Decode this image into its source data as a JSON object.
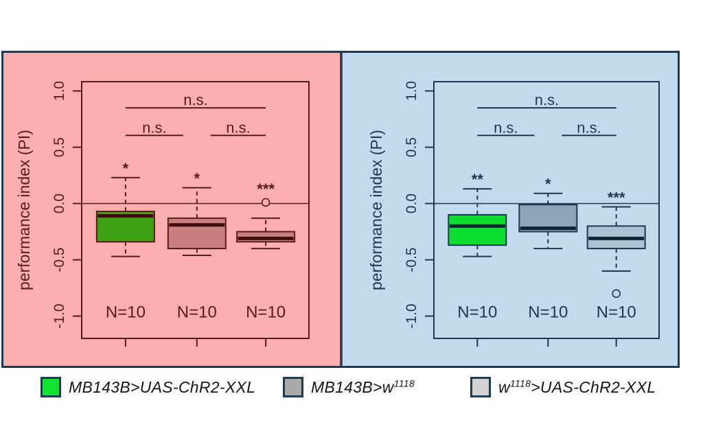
{
  "figure": {
    "background": "#ffffff",
    "border_color": "#1d3a50"
  },
  "chart_data": [
    {
      "type": "box",
      "panel": "left-red-panel",
      "background": "#fbafaf",
      "axis_color": "#5a191c",
      "median_color": "#400d10",
      "ylabel": "performance index (PI)",
      "ylim": [
        -1.2,
        1.1
      ],
      "grid": false,
      "zero_line": 0.0,
      "yticks": [
        {
          "label": "1.0",
          "value": 1.0
        },
        {
          "label": "0.5",
          "value": 0.5
        },
        {
          "label": "0.0",
          "value": 0.0
        },
        {
          "label": "-0.5",
          "value": -0.5
        },
        {
          "label": "-1.0",
          "value": -1.0
        }
      ],
      "groups": [
        {
          "fill": "#3fa011",
          "sig": "*",
          "n_label": "N=10",
          "stats": {
            "whisker_low": -0.47,
            "q1": -0.34,
            "median": -0.11,
            "q3": -0.07,
            "whisker_high": 0.23,
            "outliers": []
          }
        },
        {
          "fill": "#ca7f7f",
          "sig": "*",
          "n_label": "N=10",
          "stats": {
            "whisker_low": -0.46,
            "q1": -0.4,
            "median": -0.19,
            "q3": -0.13,
            "whisker_high": 0.14,
            "outliers": []
          }
        },
        {
          "fill": "#ca7f7f",
          "sig": "***",
          "n_label": "N=10",
          "stats": {
            "whisker_low": -0.4,
            "q1": -0.34,
            "median": -0.31,
            "q3": -0.25,
            "whisker_high": -0.13,
            "outliers": [
              0.01
            ]
          }
        }
      ],
      "comparisons": [
        {
          "from": 0,
          "to": 2,
          "label": "n.s.",
          "y": 0.85
        },
        {
          "from": 0,
          "to": 1,
          "label": "n.s.",
          "y": 0.605
        },
        {
          "from": 1,
          "to": 2,
          "label": "n.s.",
          "y": 0.605
        }
      ]
    },
    {
      "type": "box",
      "panel": "right-blue-panel",
      "background": "#c2dcee",
      "axis_color": "#1c3850",
      "median_color": "#0e2435",
      "ylabel": "performance index (PI)",
      "ylim": [
        -1.2,
        1.1
      ],
      "grid": false,
      "zero_line": 0.0,
      "yticks": [
        {
          "label": "1.0",
          "value": 1.0
        },
        {
          "label": "0.5",
          "value": 0.5
        },
        {
          "label": "0.0",
          "value": 0.0
        },
        {
          "label": "-0.5",
          "value": -0.5
        },
        {
          "label": "-1.0",
          "value": -1.0
        }
      ],
      "groups": [
        {
          "fill": "#0cdd30",
          "sig": "**",
          "n_label": "N=10",
          "stats": {
            "whisker_low": -0.47,
            "q1": -0.37,
            "median": -0.2,
            "q3": -0.1,
            "whisker_high": 0.13,
            "outliers": []
          }
        },
        {
          "fill": "#8ba4b8",
          "sig": "*",
          "n_label": "N=10",
          "stats": {
            "whisker_low": -0.4,
            "q1": -0.25,
            "median": -0.22,
            "q3": -0.01,
            "whisker_high": 0.09,
            "outliers": []
          }
        },
        {
          "fill": "#a9c2d3",
          "sig": "***",
          "n_label": "N=10",
          "stats": {
            "whisker_low": -0.6,
            "q1": -0.4,
            "median": -0.31,
            "q3": -0.2,
            "whisker_high": -0.03,
            "outliers": [
              -0.8
            ]
          }
        }
      ],
      "comparisons": [
        {
          "from": 0,
          "to": 2,
          "label": "n.s.",
          "y": 0.85
        },
        {
          "from": 0,
          "to": 1,
          "label": "n.s.",
          "y": 0.605
        },
        {
          "from": 1,
          "to": 2,
          "label": "n.s.",
          "y": 0.605
        }
      ]
    }
  ],
  "legend": {
    "items": [
      {
        "swatch_color": "#11e42e",
        "label_parts": [
          {
            "t": "MB143B>UAS-ChR2-XXL"
          }
        ]
      },
      {
        "swatch_color": "#a9a9a9",
        "label_parts": [
          {
            "t": "MB143B>w"
          },
          {
            "t": "1118",
            "sup": true
          }
        ]
      },
      {
        "swatch_color": "#d2d2d2",
        "label_parts": [
          {
            "t": "w"
          },
          {
            "t": "1118",
            "sup": true
          },
          {
            "t": ">UAS-ChR2-XXL"
          }
        ]
      }
    ]
  }
}
